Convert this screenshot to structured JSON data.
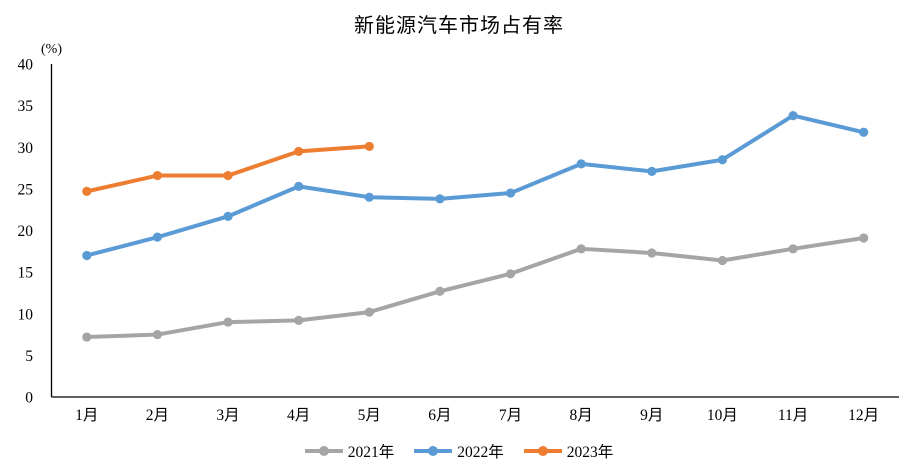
{
  "title": "新能源汽车市场占有率",
  "chart_data": {
    "type": "line",
    "title": "新能源汽车市场占有率",
    "y_unit_label": "(%)",
    "xlabel": "",
    "ylabel": "(%)",
    "categories": [
      "1月",
      "2月",
      "3月",
      "4月",
      "5月",
      "6月",
      "7月",
      "8月",
      "9月",
      "10月",
      "11月",
      "12月"
    ],
    "series": [
      {
        "name": "2021年",
        "color": "#A5A5A5",
        "values": [
          7.2,
          7.5,
          9.0,
          9.2,
          10.2,
          12.7,
          14.8,
          17.8,
          17.3,
          16.4,
          17.8,
          19.1
        ]
      },
      {
        "name": "2022年",
        "color": "#5B9BD5",
        "values": [
          17.0,
          19.2,
          21.7,
          25.3,
          24.0,
          23.8,
          24.5,
          28.0,
          27.1,
          28.5,
          33.8,
          31.8
        ]
      },
      {
        "name": "2023年",
        "color": "#ED7D31",
        "values": [
          24.7,
          26.6,
          26.6,
          29.5,
          30.1
        ]
      }
    ],
    "ylim": [
      0,
      40
    ],
    "ytick_step": 5,
    "yticks": [
      0,
      5,
      10,
      15,
      20,
      25,
      30,
      35,
      40
    ],
    "grid": false,
    "legend_position": "bottom",
    "axis_color": "#000000"
  }
}
